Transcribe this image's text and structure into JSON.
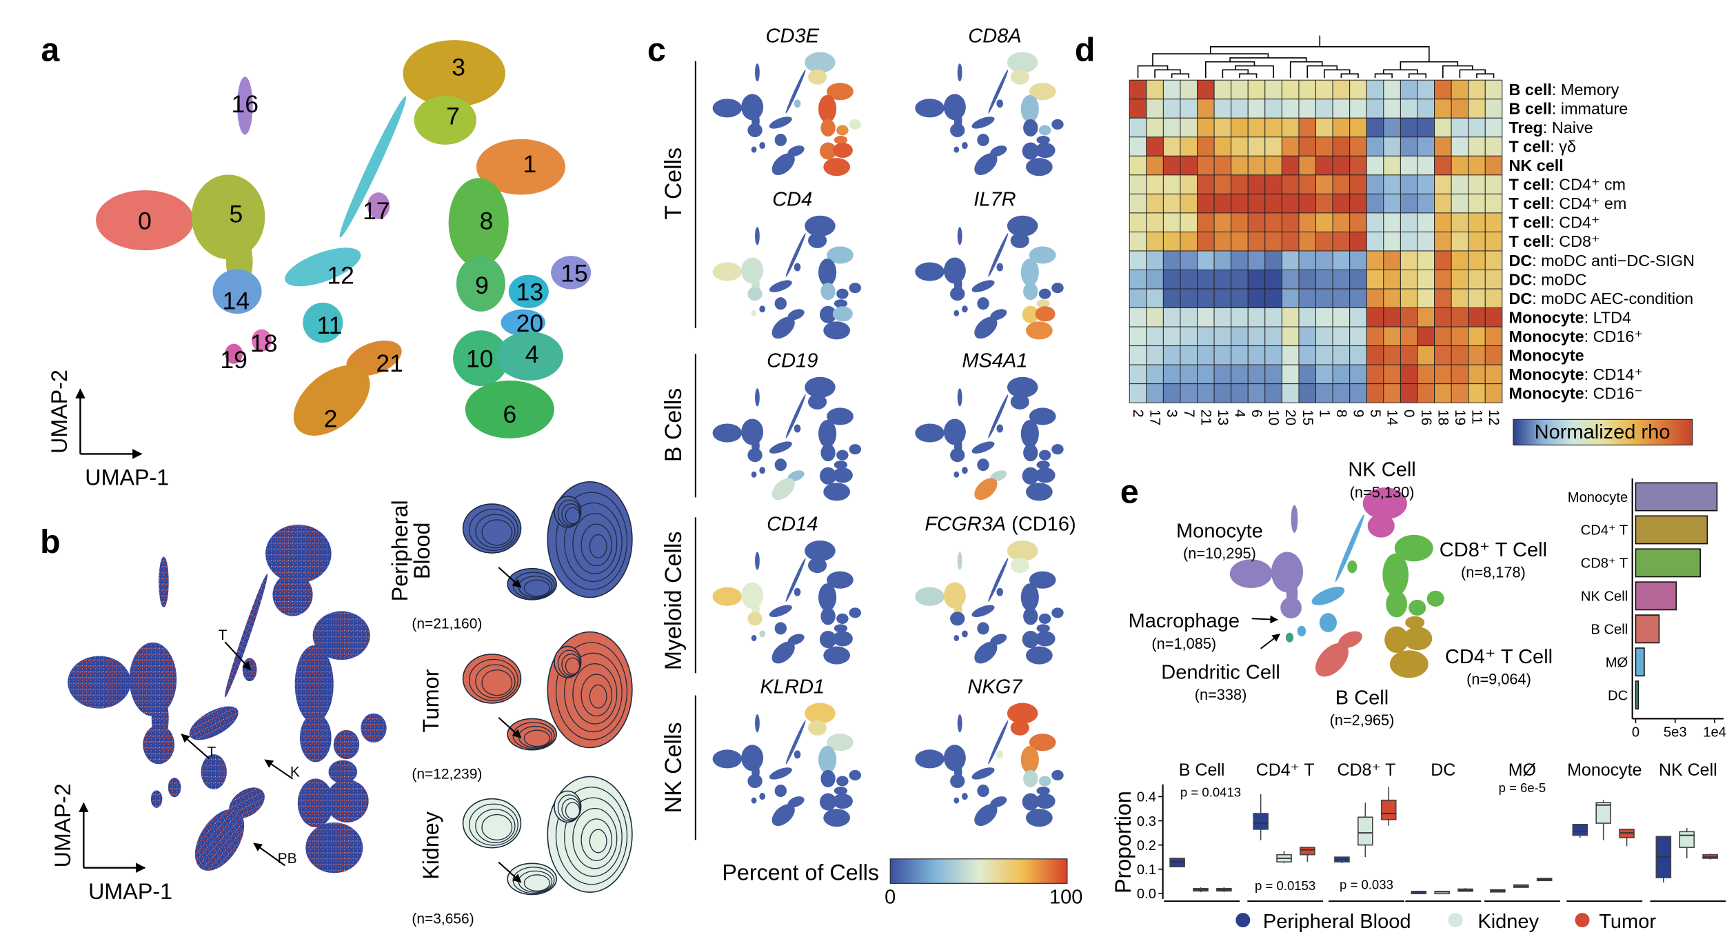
{
  "panel_labels": {
    "a": "a",
    "b": "b",
    "c": "c",
    "d": "d",
    "e": "e"
  },
  "panel_a": {
    "clusters": [
      "0",
      "1",
      "2",
      "3",
      "4",
      "5",
      "6",
      "7",
      "8",
      "9",
      "10",
      "11",
      "12",
      "13",
      "14",
      "15",
      "16",
      "17",
      "18",
      "19",
      "20",
      "21"
    ],
    "cluster_colors": [
      "#e8736b",
      "#e38a3e",
      "#d4902a",
      "#c9a227",
      "#45b59a",
      "#a8b840",
      "#3fb35a",
      "#a4c23a",
      "#5cb84a",
      "#52b86a",
      "#3db87a",
      "#46bcc4",
      "#5cc3d0",
      "#30b4d0",
      "#6a9ed8",
      "#8a8fd8",
      "#a183cf",
      "#b47fc7",
      "#e070b8",
      "#d35fa8",
      "#4aa8e0",
      "#d98a30"
    ],
    "axis_x": "UMAP-1",
    "axis_y": "UMAP-2"
  },
  "panel_b": {
    "axis_x": "UMAP-1",
    "axis_y": "UMAP-2",
    "annotations": [
      "T",
      "T",
      "K",
      "PB"
    ],
    "conditions": [
      {
        "label_lines": [
          "Peripheral",
          "Blood"
        ],
        "n": "(n=21,160)",
        "color": "#4d60aa"
      },
      {
        "label_lines": [
          "Tumor"
        ],
        "n": "(n=12,239)",
        "color": "#d86a55"
      },
      {
        "label_lines": [
          "Kidney"
        ],
        "n": "(n=3,656)",
        "color": "#e2f0e5"
      }
    ]
  },
  "panel_c": {
    "groups": [
      "T Cells",
      "B Cells",
      "Myeloid Cells",
      "NK Cells"
    ],
    "genes": [
      {
        "name": "CD3E",
        "suffix": "",
        "expression": {
          "1": 0.9,
          "8": 0.95,
          "9": 0.9,
          "13": 0.85,
          "20": 0.9,
          "4": 0.95,
          "10": 0.9,
          "6": 0.95,
          "7": 0.6,
          "3": 0.35,
          "15": 0.5,
          "17": 0.3
        }
      },
      {
        "name": "CD8A",
        "suffix": "",
        "expression": {
          "3": 0.45,
          "7": 0.55,
          "1": 0.6,
          "8": 0.3,
          "13": 0.3
        }
      },
      {
        "name": "CD4",
        "suffix": "",
        "expression": {
          "0": 0.55,
          "5": 0.45,
          "14": 0.4,
          "19": 0.5,
          "9": 0.3,
          "1": 0.3,
          "4": 0.3
        }
      },
      {
        "name": "IL7R",
        "suffix": "",
        "expression": {
          "4": 0.9,
          "6": 0.85,
          "10": 0.7,
          "20": 0.6,
          "1": 0.3,
          "9": 0.3,
          "8": 0.3
        }
      },
      {
        "name": "CD19",
        "suffix": "",
        "expression": {
          "2": 0.45,
          "21": 0.3
        }
      },
      {
        "name": "MS4A1",
        "suffix": "",
        "expression": {
          "2": 0.85,
          "21": 0.4
        }
      },
      {
        "name": "CD14",
        "suffix": "",
        "expression": {
          "0": 0.7,
          "5": 0.5,
          "14": 0.6,
          "18": 0.4
        }
      },
      {
        "name": "FCGR3A",
        "suffix": " (CD16)",
        "expression": {
          "5": 0.65,
          "0": 0.4,
          "3": 0.6,
          "7": 0.5,
          "16": 0.4
        }
      },
      {
        "name": "KLRD1",
        "suffix": "",
        "expression": {
          "3": 0.7,
          "7": 0.6,
          "1": 0.45,
          "8": 0.3
        }
      },
      {
        "name": "NKG7",
        "suffix": "",
        "expression": {
          "3": 0.95,
          "7": 0.95,
          "1": 0.9,
          "8": 0.85,
          "17": 0.5,
          "9": 0.4,
          "13": 0.35
        }
      }
    ],
    "colorbar": {
      "title": "Percent of Cells",
      "min": "0",
      "max": "100",
      "colors": [
        "#3a4fa0",
        "#80b4d8",
        "#e0ecd0",
        "#f0c050",
        "#d8402a"
      ]
    }
  },
  "panel_d": {
    "rows": [
      {
        "bold": "B cell",
        "rest": ": Memory"
      },
      {
        "bold": "B cell",
        "rest": ": immature"
      },
      {
        "bold": "Treg",
        "rest": ": Naive"
      },
      {
        "bold": "T cell",
        "rest": ": γδ"
      },
      {
        "bold": "NK cell",
        "rest": ""
      },
      {
        "bold": "T cell",
        "rest": ": CD4⁺ cm"
      },
      {
        "bold": "T cell",
        "rest": ": CD4⁺ em"
      },
      {
        "bold": "T cell",
        "rest": ": CD4⁺"
      },
      {
        "bold": "T cell",
        "rest": ": CD8⁺"
      },
      {
        "bold": "DC",
        "rest": ": moDC anti−DC-SIGN"
      },
      {
        "bold": "DC",
        "rest": ": moDC"
      },
      {
        "bold": "DC",
        "rest": ": moDC AEC-condition"
      },
      {
        "bold": "Monocyte",
        "rest": ": LTD4"
      },
      {
        "bold": "Monocyte",
        "rest": ": CD16⁺"
      },
      {
        "bold": "Monocyte",
        "rest": ""
      },
      {
        "bold": "Monocyte",
        "rest": ": CD14⁺"
      },
      {
        "bold": "Monocyte",
        "rest": ": CD16⁻"
      }
    ],
    "columns": [
      "2",
      "17",
      "3",
      "7",
      "21",
      "13",
      "4",
      "6",
      "10",
      "20",
      "15",
      "1",
      "8",
      "9",
      "5",
      "14",
      "0",
      "16",
      "18",
      "19",
      "11",
      "12"
    ],
    "values": [
      [
        1,
        0.55,
        0.35,
        0.4,
        1,
        0.45,
        0.45,
        0.5,
        0.45,
        0.5,
        0.5,
        0.5,
        0.55,
        0.5,
        0.25,
        0.35,
        0.2,
        0.25,
        0.85,
        0.7,
        0.55,
        0.45
      ],
      [
        1,
        0.4,
        0.3,
        0.3,
        0.75,
        0.3,
        0.3,
        0.35,
        0.3,
        0.35,
        0.35,
        0.3,
        0.35,
        0.35,
        0.25,
        0.35,
        0.3,
        0.25,
        0.72,
        0.75,
        0.55,
        0.4
      ],
      [
        0.3,
        0.45,
        0.38,
        0.42,
        0.7,
        0.6,
        0.68,
        0.65,
        0.65,
        0.62,
        0.85,
        0.58,
        0.7,
        0.68,
        0.05,
        0.12,
        0.05,
        0.05,
        0.45,
        0.3,
        0.3,
        0.35
      ],
      [
        0.35,
        1,
        0.55,
        0.62,
        0.85,
        0.68,
        0.6,
        0.55,
        0.55,
        0.78,
        0.9,
        0.85,
        0.92,
        0.85,
        0.15,
        0.25,
        0.12,
        0.15,
        0.78,
        0.35,
        0.45,
        0.45
      ],
      [
        0.5,
        0.78,
        1,
        1,
        0.85,
        0.85,
        0.72,
        0.72,
        0.72,
        1,
        0.78,
        1,
        1,
        0.95,
        0.35,
        0.45,
        0.35,
        0.35,
        0.92,
        0.7,
        0.7,
        0.78
      ],
      [
        0.45,
        0.5,
        0.48,
        0.55,
        0.95,
        0.88,
        0.95,
        1,
        1,
        0.95,
        0.9,
        0.78,
        0.88,
        0.95,
        0.15,
        0.2,
        0.15,
        0.18,
        0.55,
        0.4,
        0.45,
        0.45
      ],
      [
        0.45,
        0.58,
        0.55,
        0.62,
        1,
        1,
        1,
        1,
        1,
        1,
        1,
        0.9,
        1,
        1,
        0.12,
        0.18,
        0.12,
        0.15,
        0.6,
        0.4,
        0.48,
        0.48
      ],
      [
        0.5,
        0.52,
        0.48,
        0.5,
        0.88,
        0.78,
        0.85,
        0.92,
        0.9,
        0.92,
        0.78,
        0.7,
        0.78,
        0.85,
        0.3,
        0.35,
        0.3,
        0.35,
        0.7,
        0.6,
        0.65,
        0.65
      ],
      [
        0.45,
        0.62,
        0.65,
        0.7,
        0.9,
        0.8,
        0.8,
        0.88,
        0.88,
        0.92,
        0.8,
        0.9,
        0.92,
        1,
        0.3,
        0.35,
        0.3,
        0.32,
        0.72,
        0.55,
        0.65,
        0.65
      ],
      [
        0.3,
        0.22,
        0.1,
        0.12,
        0.2,
        0.15,
        0.1,
        0.12,
        0.08,
        0.2,
        0.15,
        0.15,
        0.18,
        0.15,
        0.72,
        0.78,
        0.55,
        0.5,
        0.9,
        0.68,
        0.65,
        0.6
      ],
      [
        0.18,
        0.15,
        0.05,
        0.05,
        0.05,
        0.05,
        0.05,
        0.02,
        0.02,
        0.12,
        0.08,
        0.1,
        0.1,
        0.08,
        0.65,
        0.7,
        0.58,
        0.5,
        0.82,
        0.65,
        0.58,
        0.58
      ],
      [
        0.2,
        0.25,
        0.05,
        0.05,
        0.05,
        0.05,
        0.05,
        0.02,
        0.02,
        0.15,
        0.1,
        0.1,
        0.1,
        0.1,
        0.78,
        0.72,
        0.62,
        0.5,
        0.88,
        0.6,
        0.55,
        0.58
      ],
      [
        0.35,
        0.4,
        0.3,
        0.3,
        0.35,
        0.3,
        0.3,
        0.3,
        0.3,
        0.45,
        0.3,
        0.35,
        0.35,
        0.3,
        1,
        1,
        0.92,
        0.75,
        0.95,
        0.92,
        1,
        1
      ],
      [
        0.35,
        0.3,
        0.3,
        0.28,
        0.25,
        0.25,
        0.22,
        0.25,
        0.25,
        0.45,
        0.2,
        0.28,
        0.3,
        0.3,
        0.85,
        0.75,
        0.82,
        1,
        0.85,
        0.8,
        0.68,
        0.78
      ],
      [
        0.32,
        0.28,
        0.22,
        0.22,
        0.2,
        0.2,
        0.2,
        0.2,
        0.2,
        0.35,
        0.2,
        0.25,
        0.25,
        0.25,
        0.95,
        0.9,
        0.92,
        0.72,
        0.88,
        0.88,
        0.78,
        0.85
      ],
      [
        0.28,
        0.2,
        0.15,
        0.15,
        0.15,
        0.12,
        0.12,
        0.12,
        0.12,
        0.35,
        0.1,
        0.18,
        0.15,
        0.15,
        0.9,
        0.85,
        1,
        0.82,
        0.82,
        0.85,
        0.72,
        0.72
      ],
      [
        0.28,
        0.15,
        0.1,
        0.12,
        0.12,
        0.1,
        0.1,
        0.12,
        0.1,
        0.3,
        0.08,
        0.12,
        0.12,
        0.12,
        0.9,
        0.82,
        1,
        0.85,
        0.75,
        0.8,
        0.65,
        0.72
      ]
    ],
    "legend": "Normalized rho",
    "colors": [
      "#2c3f8c",
      "#8db4d8",
      "#cfe5e0",
      "#e6e0a0",
      "#e8b850",
      "#dc7a3a",
      "#c3432e"
    ]
  },
  "panel_e": {
    "cell_types": [
      {
        "name": "NK Cell",
        "n": "(n=5,130)",
        "color": "#c85aa8"
      },
      {
        "name": "Monocyte",
        "n": "(n=10,295)",
        "color": "#8e80c0"
      },
      {
        "name": "CD8⁺ T Cell",
        "n": "(n=8,178)",
        "color": "#62b84a"
      },
      {
        "name": "Macrophage",
        "n": "(n=1,085)",
        "color": "#5aa8d8"
      },
      {
        "name": "Dendritic Cell",
        "n": "(n=338)",
        "color": "#3fa080"
      },
      {
        "name": "B Cell",
        "n": "(n=2,965)",
        "color": "#d86a66"
      },
      {
        "name": "CD4⁺ T Cell",
        "n": "(n=9,064)",
        "color": "#b8962e"
      }
    ],
    "bar_chart": {
      "type": "bar",
      "orientation": "horizontal",
      "categories": [
        "Monocyte",
        "CD4⁺ T",
        "CD8⁺ T",
        "NK Cell",
        "B Cell",
        "MØ",
        "DC"
      ],
      "values": [
        10295,
        9064,
        8178,
        5130,
        2965,
        1085,
        338
      ],
      "colors": [
        "#8a80b0",
        "#b0923c",
        "#72aa50",
        "#b56696",
        "#d06e66",
        "#68acd8",
        "#4a9a70"
      ],
      "ticks": [
        "0",
        "5e3",
        "1e4"
      ],
      "xlim": [
        0,
        10000
      ]
    },
    "boxplot": {
      "type": "box",
      "ylabel": "Proportion",
      "yticks": [
        "0.0",
        "0.1",
        "0.2",
        "0.3",
        "0.4"
      ],
      "ylim": [
        0,
        0.45
      ],
      "groups": [
        {
          "name": "Peripheral Blood",
          "color": "#2b3f8f"
        },
        {
          "name": "Kidney",
          "color": "#d4e9dd"
        },
        {
          "name": "Tumor",
          "color": "#d04a35"
        }
      ],
      "facets": [
        {
          "name": "B Cell",
          "p_value": "p = 0.0413",
          "boxes": [
            [
              0.11,
              0.11,
              0.13,
              0.145,
              0.145
            ],
            [
              0.005,
              0.01,
              0.015,
              0.02,
              0.025
            ],
            [
              0.005,
              0.01,
              0.015,
              0.02,
              0.025
            ]
          ]
        },
        {
          "name": "CD4⁺ T",
          "p_value": "p = 0.0153",
          "boxes": [
            [
              0.22,
              0.265,
              0.29,
              0.33,
              0.41
            ],
            [
              0.125,
              0.13,
              0.145,
              0.16,
              0.175
            ],
            [
              0.13,
              0.16,
              0.18,
              0.19,
              0.19
            ]
          ]
        },
        {
          "name": "CD8⁺ T",
          "p_value": "p = 0.033",
          "boxes": [
            [
              0.125,
              0.13,
              0.14,
              0.15,
              0.15
            ],
            [
              0.15,
              0.2,
              0.25,
              0.315,
              0.375
            ],
            [
              0.28,
              0.305,
              0.33,
              0.385,
              0.44
            ]
          ]
        },
        {
          "name": "DC",
          "p_value": "",
          "boxes": [
            [
              0.005,
              0.005,
              0.007,
              0.008,
              0.01
            ],
            [
              0.005,
              0.005,
              0.007,
              0.008,
              0.01
            ],
            [
              0.01,
              0.01,
              0.013,
              0.018,
              0.022
            ]
          ]
        },
        {
          "name": "MØ",
          "p_value": "p = 6e-5",
          "boxes": [
            [
              0.01,
              0.01,
              0.012,
              0.015,
              0.015
            ],
            [
              0.025,
              0.025,
              0.03,
              0.035,
              0.035
            ],
            [
              0.055,
              0.055,
              0.058,
              0.062,
              0.062
            ]
          ]
        },
        {
          "name": "Monocyte",
          "p_value": "",
          "boxes": [
            [
              0.23,
              0.24,
              0.255,
              0.285,
              0.285
            ],
            [
              0.22,
              0.29,
              0.365,
              0.375,
              0.385
            ],
            [
              0.195,
              0.23,
              0.25,
              0.265,
              0.265
            ]
          ]
        },
        {
          "name": "NK Cell",
          "p_value": "",
          "boxes": [
            [
              0.045,
              0.065,
              0.15,
              0.235,
              0.235
            ],
            [
              0.145,
              0.19,
              0.24,
              0.255,
              0.27
            ],
            [
              0.14,
              0.145,
              0.15,
              0.16,
              0.165
            ]
          ]
        }
      ]
    }
  }
}
